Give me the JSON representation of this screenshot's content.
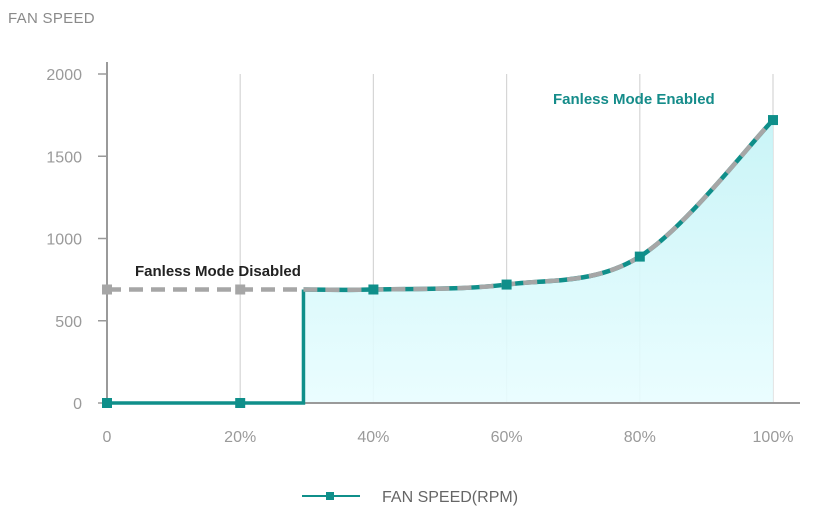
{
  "page_title": "FAN SPEED",
  "colors": {
    "enabled": "#0f8f8a",
    "disabled": "#a6a6a6",
    "enabled_label": "#158c8a",
    "disabled_label": "#222222",
    "grid": "#d6d6d6",
    "axis": "#9a9a9a",
    "tick_text": "#9a9a9a",
    "fill_top": "#c4f3f6",
    "fill_bottom": "#e8fdff"
  },
  "chart_data": {
    "type": "line",
    "title": "FAN SPEED",
    "xlabel": "",
    "ylabel": "",
    "xlim": [
      0,
      100
    ],
    "ylim": [
      0,
      2000
    ],
    "x_ticks": [
      0,
      20,
      40,
      60,
      80,
      100
    ],
    "x_tick_labels": [
      "0",
      "20%",
      "40%",
      "60%",
      "80%",
      "100%"
    ],
    "y_ticks": [
      0,
      500,
      1000,
      1500,
      2000
    ],
    "y_tick_labels": [
      "0",
      "500",
      "1000",
      "1500",
      "2000"
    ],
    "grid": "vertical",
    "legend_position": "bottom-center",
    "series": [
      {
        "name": "FAN SPEED(RPM)",
        "style": "solid",
        "color": "#0f8f8a",
        "x": [
          0,
          20,
          29.5,
          29.5,
          40,
          60,
          80,
          100
        ],
        "y": [
          0,
          0,
          0,
          690,
          690,
          720,
          890,
          1720
        ],
        "markers": [
          0,
          20,
          40,
          60,
          80,
          100
        ],
        "marker_y": [
          0,
          0,
          690,
          720,
          890,
          1720
        ]
      },
      {
        "style": "dashed",
        "color": "#a6a6a6",
        "x": [
          0,
          20,
          29.5,
          40,
          60,
          80,
          100
        ],
        "y": [
          690,
          690,
          690,
          690,
          720,
          890,
          1720
        ],
        "markers": [
          0,
          20
        ],
        "marker_y": [
          690,
          690
        ]
      }
    ],
    "annotations": [
      {
        "text": "Fanless Mode Disabled",
        "x": 3.5,
        "y": 800,
        "color": "#222222"
      },
      {
        "text": "Fanless Mode Enabled",
        "x": 67,
        "y": 1850,
        "color": "#158c8a"
      }
    ],
    "legend": [
      {
        "label": "FAN SPEED(RPM)",
        "color": "#0f8f8a",
        "marker": "square"
      }
    ]
  }
}
